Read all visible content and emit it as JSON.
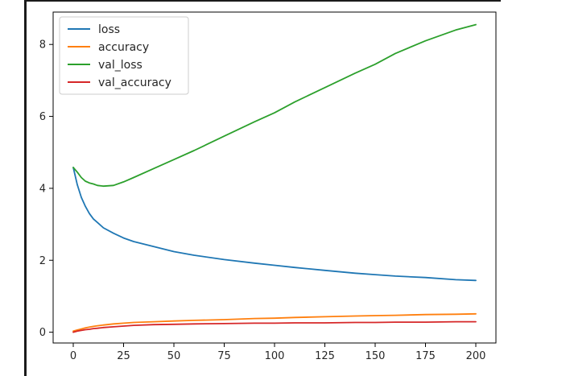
{
  "chart_data": {
    "type": "line",
    "title": "",
    "xlabel": "",
    "ylabel": "",
    "xlim": [
      -10,
      210
    ],
    "ylim": [
      -0.3,
      8.9
    ],
    "grid": false,
    "legend_position": "upper-left",
    "x_ticks": [
      0,
      25,
      50,
      75,
      100,
      125,
      150,
      175,
      200
    ],
    "x_tick_labels": [
      "0",
      "25",
      "50",
      "75",
      "100",
      "125",
      "150",
      "175",
      "200"
    ],
    "y_ticks": [
      0,
      2,
      4,
      6,
      8
    ],
    "y_tick_labels": [
      "0",
      "2",
      "4",
      "6",
      "8"
    ],
    "x": [
      0,
      2,
      4,
      6,
      8,
      10,
      12,
      15,
      20,
      25,
      30,
      40,
      50,
      60,
      75,
      90,
      100,
      110,
      125,
      140,
      150,
      160,
      175,
      190,
      200
    ],
    "series": [
      {
        "name": "loss",
        "color": "#1f77b4",
        "values": [
          4.58,
          4.1,
          3.75,
          3.5,
          3.3,
          3.15,
          3.05,
          2.9,
          2.75,
          2.62,
          2.52,
          2.38,
          2.24,
          2.14,
          2.02,
          1.92,
          1.86,
          1.8,
          1.72,
          1.64,
          1.6,
          1.56,
          1.52,
          1.46,
          1.44
        ]
      },
      {
        "name": "accuracy",
        "color": "#ff7f0e",
        "values": [
          0.03,
          0.06,
          0.09,
          0.12,
          0.14,
          0.16,
          0.18,
          0.2,
          0.23,
          0.25,
          0.27,
          0.29,
          0.31,
          0.33,
          0.35,
          0.38,
          0.39,
          0.41,
          0.43,
          0.45,
          0.46,
          0.47,
          0.49,
          0.5,
          0.51
        ]
      },
      {
        "name": "val_loss",
        "color": "#2ca02c",
        "values": [
          4.58,
          4.45,
          4.3,
          4.2,
          4.15,
          4.12,
          4.08,
          4.06,
          4.08,
          4.18,
          4.3,
          4.55,
          4.8,
          5.05,
          5.45,
          5.85,
          6.1,
          6.4,
          6.8,
          7.2,
          7.45,
          7.75,
          8.1,
          8.4,
          8.55
        ]
      },
      {
        "name": "val_accuracy",
        "color": "#d62728",
        "values": [
          0.0,
          0.03,
          0.05,
          0.07,
          0.08,
          0.1,
          0.11,
          0.13,
          0.15,
          0.17,
          0.19,
          0.21,
          0.22,
          0.23,
          0.24,
          0.25,
          0.25,
          0.26,
          0.26,
          0.27,
          0.27,
          0.28,
          0.28,
          0.29,
          0.29
        ]
      }
    ]
  }
}
